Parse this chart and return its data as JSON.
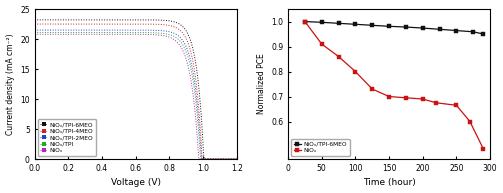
{
  "left_xlabel": "Voltage (V)",
  "left_ylabel": "Current density (mA cm⁻²)",
  "left_xlim": [
    0.0,
    1.2
  ],
  "left_ylim": [
    0,
    25
  ],
  "left_yticks": [
    0,
    5,
    10,
    15,
    20,
    25
  ],
  "left_xticks": [
    0.0,
    0.2,
    0.4,
    0.6,
    0.8,
    1.0,
    1.2
  ],
  "curves": [
    {
      "label": "NiOₓ/TPI-6MEO",
      "color": "#111111",
      "jsc": 23.2,
      "voc": 1.005,
      "n": 1.6
    },
    {
      "label": "NiOₓ/TPI-4MEO",
      "color": "#d42020",
      "jsc": 22.5,
      "voc": 0.995,
      "n": 1.65
    },
    {
      "label": "NiOₓ/TPI-2MEO",
      "color": "#2244cc",
      "jsc": 21.5,
      "voc": 0.99,
      "n": 1.7
    },
    {
      "label": "NiOₓ/TPI",
      "color": "#22aa22",
      "jsc": 21.1,
      "voc": 0.985,
      "n": 1.75
    },
    {
      "label": "NiOₓ",
      "color": "#bb22bb",
      "jsc": 20.8,
      "voc": 0.975,
      "n": 1.8
    }
  ],
  "right_xlabel": "Time (hour)",
  "right_ylabel": "Normalized PCE",
  "right_xlim": [
    0,
    300
  ],
  "right_ylim": [
    0.45,
    1.05
  ],
  "right_yticks": [
    0.6,
    0.7,
    0.8,
    0.9,
    1.0
  ],
  "right_xticks": [
    0,
    50,
    100,
    150,
    200,
    250,
    300
  ],
  "stability_TPI6MEO": {
    "label": "NiOₓ/TPI-6MEO",
    "color": "#111111",
    "time": [
      25,
      50,
      75,
      100,
      125,
      150,
      175,
      200,
      225,
      250,
      275,
      290
    ],
    "pce": [
      1.0,
      0.997,
      0.993,
      0.989,
      0.985,
      0.981,
      0.978,
      0.974,
      0.969,
      0.964,
      0.959,
      0.95
    ]
  },
  "stability_NiOx": {
    "label": "NiOₓ",
    "color": "#cc1111",
    "time": [
      25,
      50,
      75,
      100,
      125,
      150,
      175,
      200,
      220,
      250,
      270,
      290
    ],
    "pce": [
      1.0,
      0.91,
      0.86,
      0.8,
      0.73,
      0.7,
      0.695,
      0.69,
      0.675,
      0.665,
      0.6,
      0.49
    ]
  }
}
